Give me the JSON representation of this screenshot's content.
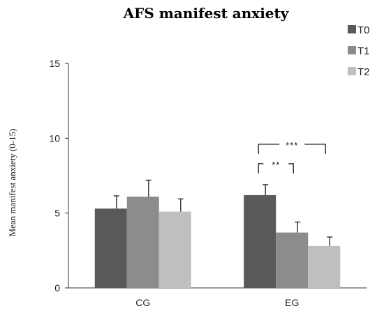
{
  "chart_data": {
    "type": "bar",
    "title": "AFS manifest anxiety",
    "ylabel": "Mean manifest anxiety (0-15)",
    "xlabel": "",
    "ylim": [
      0,
      15
    ],
    "yticks": [
      "0",
      "5",
      "10",
      "15"
    ],
    "categories": [
      "CG",
      "EG"
    ],
    "series": [
      {
        "name": "T0",
        "values": [
          5.3,
          6.2
        ],
        "errors": [
          0.85,
          0.7
        ],
        "color": "#595959"
      },
      {
        "name": "T1",
        "values": [
          6.1,
          3.7
        ],
        "errors": [
          1.1,
          0.7
        ],
        "color": "#8c8c8c"
      },
      {
        "name": "T2",
        "values": [
          5.1,
          2.8
        ],
        "errors": [
          0.85,
          0.6
        ],
        "color": "#bfbfbf"
      }
    ],
    "legend_position": "top-right",
    "grid": false,
    "annotations": [
      {
        "text": "**",
        "category": "EG",
        "from_series": "T0",
        "to_series": "T1"
      },
      {
        "text": "***",
        "category": "EG",
        "from_series": "T0",
        "to_series": "T2"
      }
    ]
  }
}
